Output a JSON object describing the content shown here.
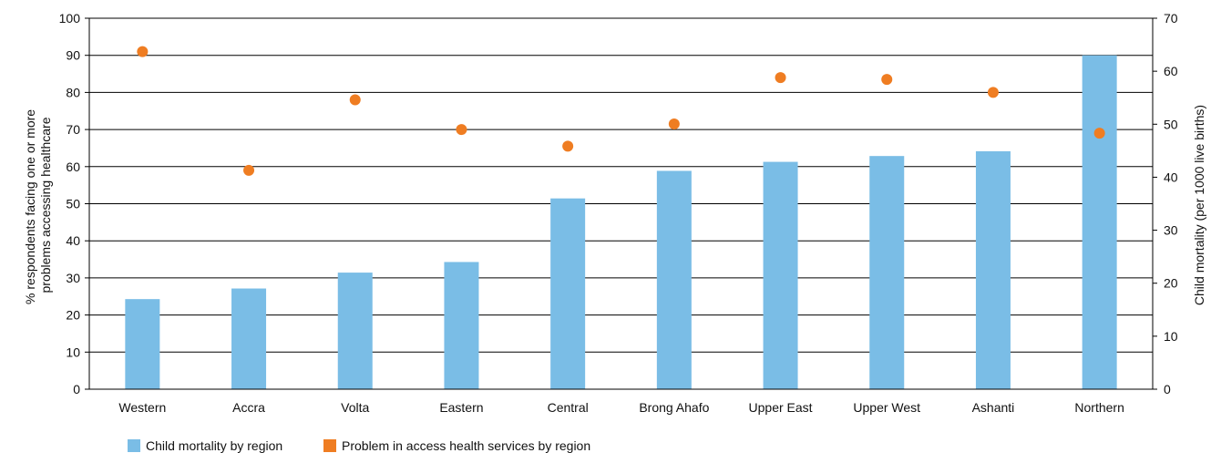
{
  "chart_data": {
    "type": "bar",
    "title": "",
    "categories": [
      "Western",
      "Accra",
      "Volta",
      "Eastern",
      "Central",
      "Brong Ahafo",
      "Upper East",
      "Upper West",
      "Ashanti",
      "Northern"
    ],
    "series": [
      {
        "name": "Child mortality by region",
        "kind": "bar",
        "axis": "right",
        "color": "#7abde6",
        "values": [
          17,
          19,
          22,
          24,
          36,
          41.2,
          42.9,
          44,
          44.9,
          63
        ]
      },
      {
        "name": "Problem in access health services by region",
        "kind": "scatter",
        "axis": "left",
        "color": "#ef7d22",
        "values": [
          91,
          59,
          78,
          70,
          65.5,
          71.5,
          84,
          83.5,
          80,
          69
        ]
      }
    ],
    "y_left": {
      "label_line1": "% respondents facing one or more",
      "label_line2": "problems accessing healthcare",
      "ylim": [
        0,
        100
      ],
      "ticks": [
        "0",
        "10",
        "20",
        "30",
        "40",
        "50",
        "60",
        "70",
        "80",
        "90",
        "100"
      ]
    },
    "y_right": {
      "label": "Child mortality (per 1000 live births)",
      "ylim": [
        0,
        70
      ],
      "ticks": [
        "0",
        "10",
        "20",
        "30",
        "40",
        "50",
        "60",
        "70"
      ]
    },
    "grid": true,
    "legend_position": "bottom-left"
  }
}
